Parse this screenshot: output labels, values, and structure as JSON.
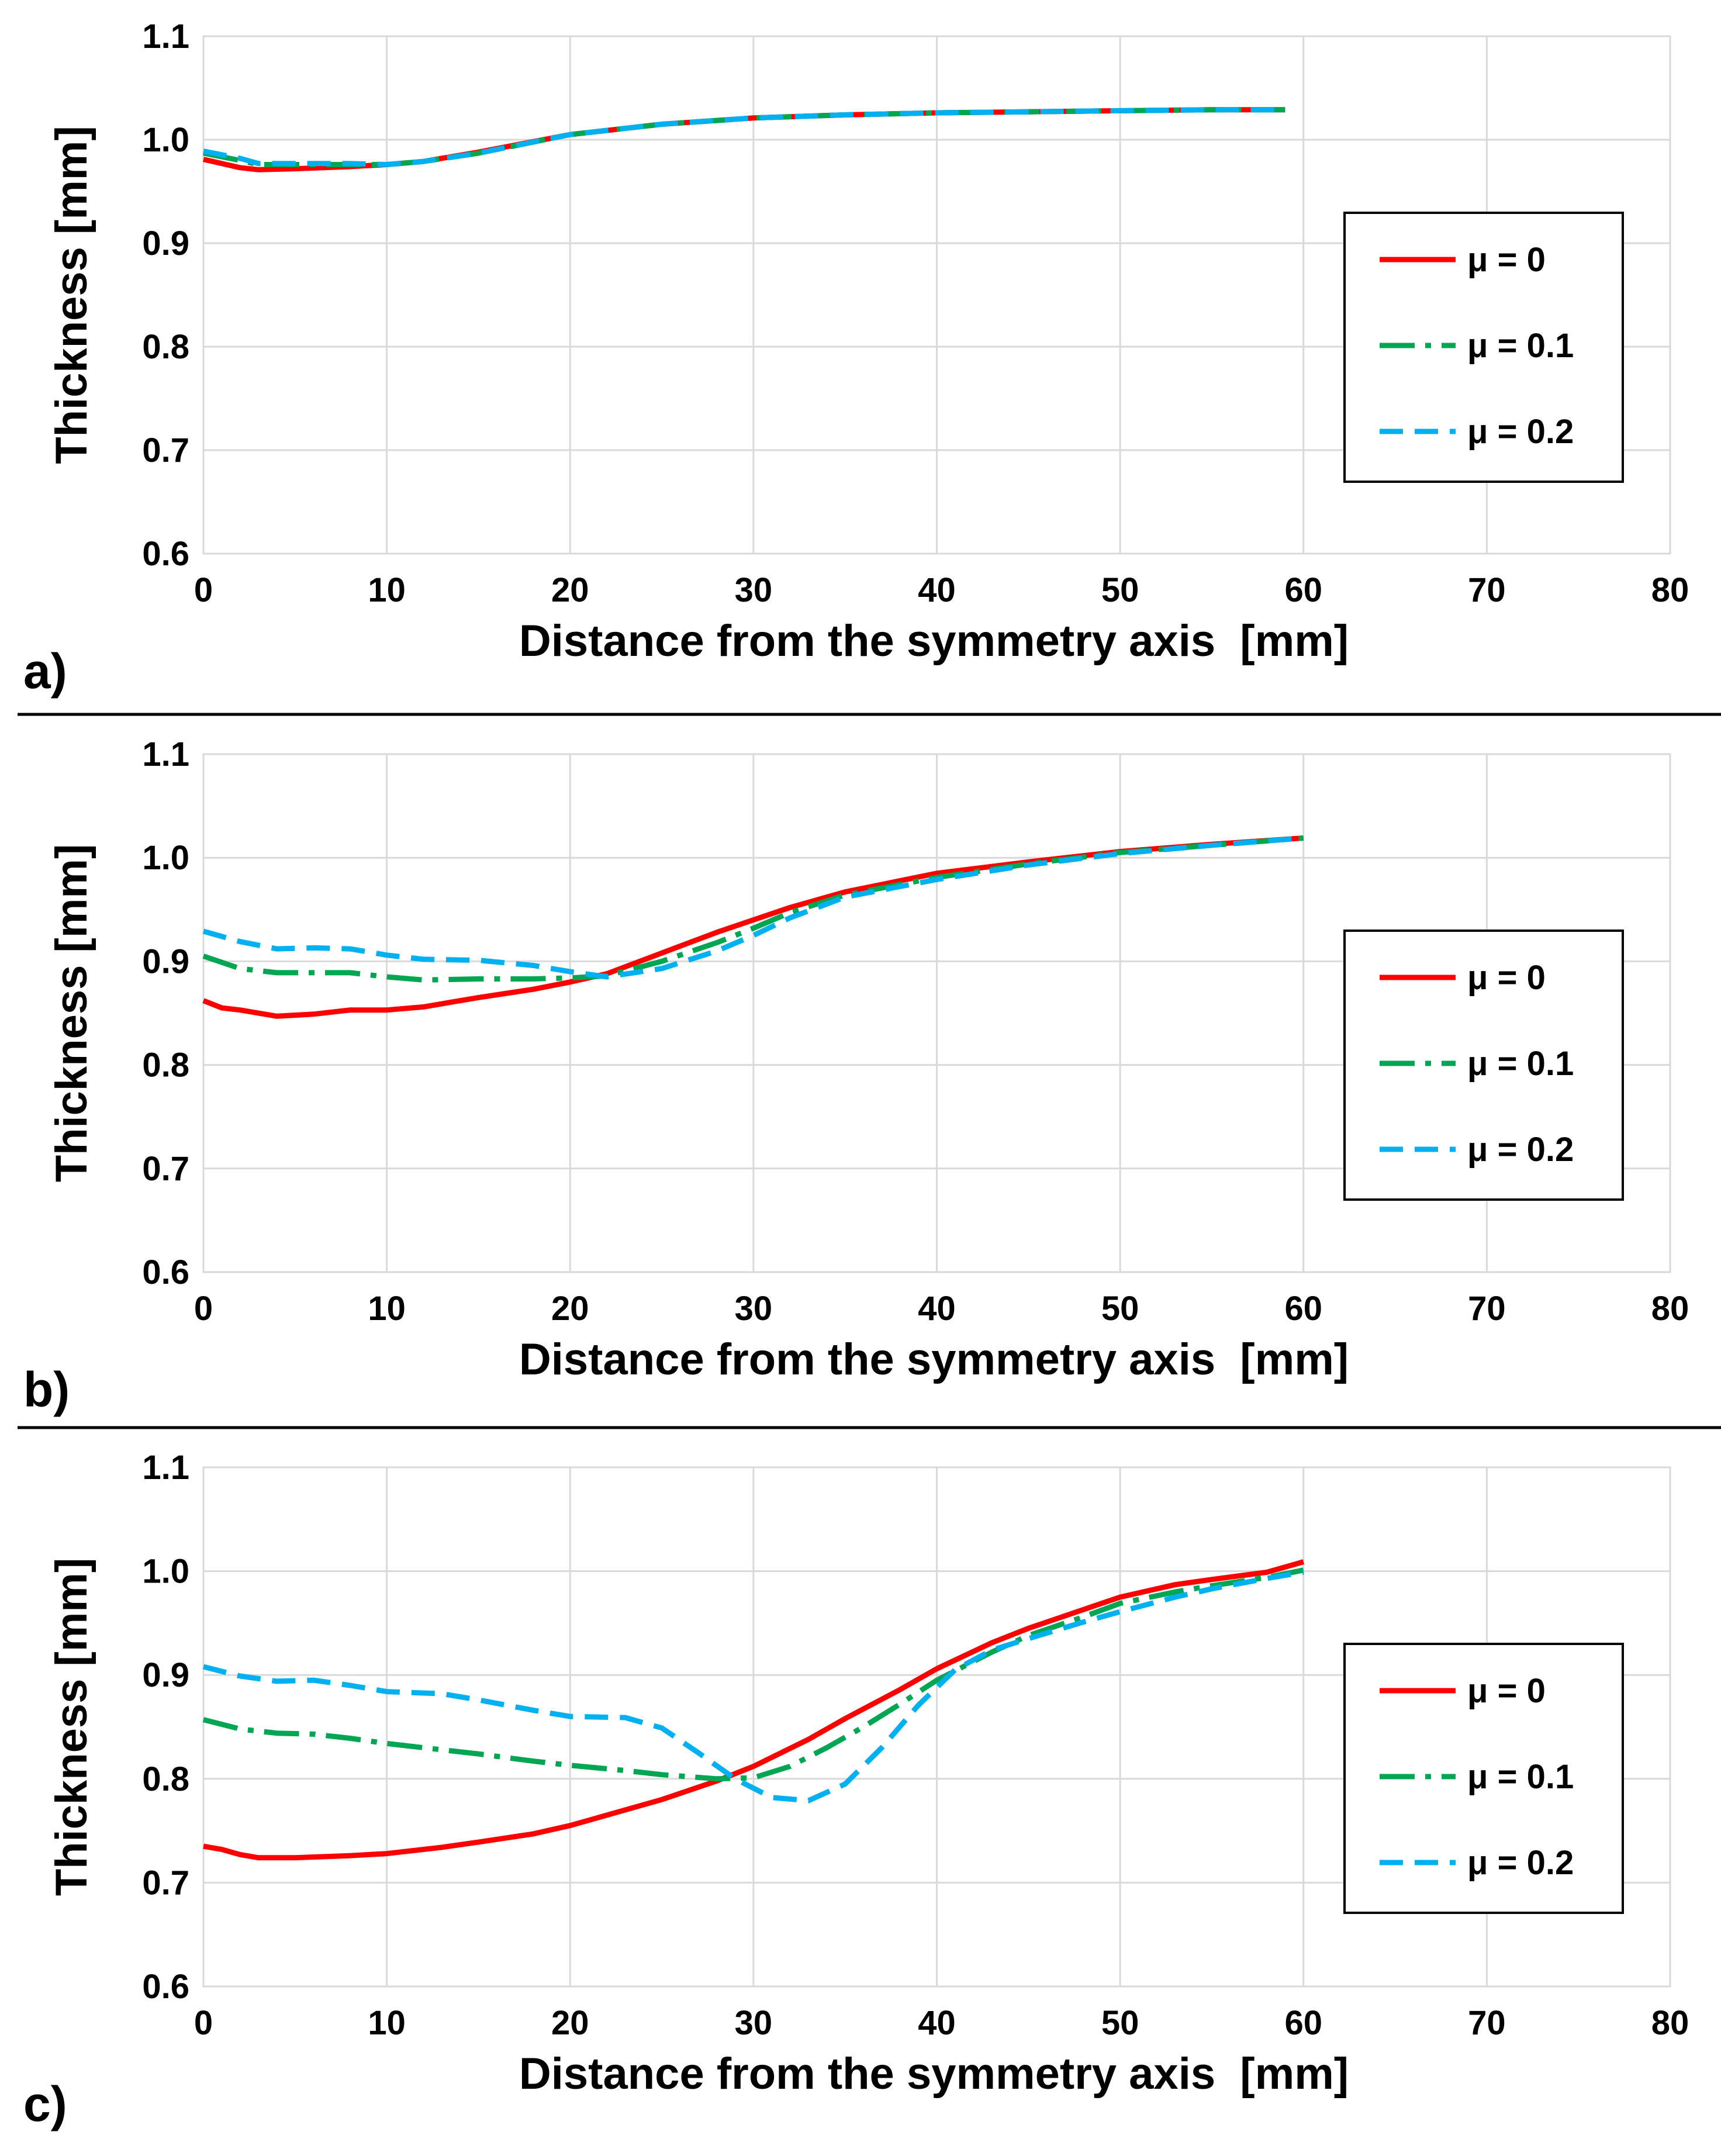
{
  "figure": {
    "panel_labels": [
      "a)",
      "b)",
      "c)"
    ]
  },
  "chart_data": [
    {
      "type": "line",
      "panel": "a)",
      "xlabel": "Distance from the symmetry axis  [mm]",
      "ylabel": "Thickness [mm]",
      "xlim": [
        0,
        80
      ],
      "ylim": [
        0.6,
        1.1
      ],
      "xticks": [
        "0",
        "10",
        "20",
        "30",
        "40",
        "50",
        "60",
        "70",
        "80"
      ],
      "yticks": [
        "0.6",
        "0.7",
        "0.8",
        "0.9",
        "1.0",
        "1.1"
      ],
      "grid": true,
      "legend_position": "right",
      "series": [
        {
          "name": "μ = 0",
          "color": "#ff0000",
          "style": "solid",
          "x": [
            0,
            2,
            3,
            5,
            8,
            10,
            12,
            15,
            20,
            25,
            30,
            35,
            40,
            45,
            50,
            55,
            59
          ],
          "y": [
            0.981,
            0.973,
            0.971,
            0.972,
            0.974,
            0.976,
            0.979,
            0.988,
            1.005,
            1.015,
            1.021,
            1.024,
            1.026,
            1.027,
            1.028,
            1.029,
            1.029
          ]
        },
        {
          "name": "μ = 0.1",
          "color": "#00a651",
          "style": "dashdot",
          "x": [
            0,
            2,
            3,
            5,
            8,
            10,
            12,
            15,
            20,
            25,
            30,
            35,
            40,
            45,
            50,
            55,
            59
          ],
          "y": [
            0.987,
            0.98,
            0.976,
            0.976,
            0.976,
            0.976,
            0.979,
            0.987,
            1.005,
            1.015,
            1.021,
            1.024,
            1.026,
            1.027,
            1.028,
            1.029,
            1.029
          ]
        },
        {
          "name": "μ = 0.2",
          "color": "#00b0f0",
          "style": "dashed",
          "x": [
            0,
            2,
            3,
            5,
            8,
            10,
            12,
            15,
            20,
            25,
            30,
            35,
            40,
            45,
            50,
            55,
            59
          ],
          "y": [
            0.989,
            0.982,
            0.977,
            0.977,
            0.977,
            0.976,
            0.979,
            0.987,
            1.005,
            1.015,
            1.021,
            1.024,
            1.026,
            1.027,
            1.028,
            1.029,
            1.029
          ]
        }
      ]
    },
    {
      "type": "line",
      "panel": "b)",
      "xlabel": "Distance from the symmetry axis  [mm]",
      "ylabel": "Thickness [mm]",
      "xlim": [
        0,
        80
      ],
      "ylim": [
        0.6,
        1.1
      ],
      "xticks": [
        "0",
        "10",
        "20",
        "30",
        "40",
        "50",
        "60",
        "70",
        "80"
      ],
      "yticks": [
        "0.6",
        "0.7",
        "0.8",
        "0.9",
        "1.0",
        "1.1"
      ],
      "grid": true,
      "legend_position": "right",
      "series": [
        {
          "name": "μ = 0",
          "color": "#ff0000",
          "style": "solid",
          "x": [
            0,
            1,
            2,
            4,
            6,
            8,
            10,
            12,
            15,
            18,
            20,
            22,
            25,
            28,
            30,
            32,
            35,
            40,
            45,
            50,
            55,
            60
          ],
          "y": [
            0.862,
            0.855,
            0.853,
            0.847,
            0.849,
            0.853,
            0.853,
            0.856,
            0.865,
            0.873,
            0.88,
            0.888,
            0.908,
            0.928,
            0.94,
            0.952,
            0.967,
            0.985,
            0.996,
            1.006,
            1.013,
            1.019
          ]
        },
        {
          "name": "μ = 0.1",
          "color": "#00a651",
          "style": "dashdot",
          "x": [
            0,
            2,
            4,
            6,
            8,
            10,
            12,
            15,
            18,
            20,
            22,
            25,
            28,
            30,
            32,
            35,
            40,
            45,
            50,
            55,
            60
          ],
          "y": [
            0.905,
            0.893,
            0.889,
            0.889,
            0.889,
            0.885,
            0.882,
            0.883,
            0.883,
            0.884,
            0.886,
            0.9,
            0.918,
            0.932,
            0.947,
            0.964,
            0.981,
            0.994,
            1.005,
            1.012,
            1.019
          ]
        },
        {
          "name": "μ = 0.2",
          "color": "#00b0f0",
          "style": "dashed",
          "x": [
            0,
            2,
            4,
            6,
            8,
            10,
            12,
            15,
            18,
            20,
            22,
            25,
            28,
            30,
            32,
            35,
            40,
            45,
            50,
            55,
            60
          ],
          "y": [
            0.929,
            0.919,
            0.912,
            0.913,
            0.912,
            0.906,
            0.902,
            0.901,
            0.896,
            0.89,
            0.885,
            0.893,
            0.91,
            0.925,
            0.942,
            0.962,
            0.979,
            0.993,
            1.004,
            1.012,
            1.019
          ]
        }
      ]
    },
    {
      "type": "line",
      "panel": "c)",
      "xlabel": "Distance from the symmetry axis  [mm]",
      "ylabel": "Thickness [mm]",
      "xlim": [
        0,
        80
      ],
      "ylim": [
        0.6,
        1.1
      ],
      "xticks": [
        "0",
        "10",
        "20",
        "30",
        "40",
        "50",
        "60",
        "70",
        "80"
      ],
      "yticks": [
        "0.6",
        "0.7",
        "0.8",
        "0.9",
        "1.0",
        "1.1"
      ],
      "grid": true,
      "legend_position": "right",
      "series": [
        {
          "name": "μ = 0",
          "color": "#ff0000",
          "style": "solid",
          "x": [
            0,
            1,
            2,
            3,
            5,
            8,
            10,
            13,
            15,
            18,
            20,
            23,
            25,
            28,
            30,
            33,
            35,
            38,
            40,
            43,
            45,
            48,
            50,
            53,
            55,
            58,
            60
          ],
          "y": [
            0.735,
            0.732,
            0.727,
            0.724,
            0.724,
            0.726,
            0.728,
            0.734,
            0.739,
            0.747,
            0.755,
            0.77,
            0.78,
            0.798,
            0.812,
            0.838,
            0.858,
            0.886,
            0.906,
            0.931,
            0.945,
            0.963,
            0.975,
            0.987,
            0.992,
            0.999,
            1.009
          ]
        },
        {
          "name": "μ = 0.1",
          "color": "#00a651",
          "style": "dashdot",
          "x": [
            0,
            2,
            4,
            6,
            8,
            10,
            13,
            15,
            18,
            20,
            23,
            25,
            28,
            30,
            32,
            34,
            36,
            38,
            40,
            43,
            45,
            48,
            50,
            53,
            55,
            58,
            60
          ],
          "y": [
            0.857,
            0.848,
            0.844,
            0.843,
            0.839,
            0.834,
            0.828,
            0.824,
            0.817,
            0.813,
            0.808,
            0.804,
            0.8,
            0.801,
            0.812,
            0.83,
            0.85,
            0.872,
            0.895,
            0.922,
            0.938,
            0.956,
            0.969,
            0.98,
            0.986,
            0.994,
            1.001
          ]
        },
        {
          "name": "μ = 0.2",
          "color": "#00b0f0",
          "style": "dashed",
          "x": [
            0,
            2,
            4,
            6,
            8,
            10,
            13,
            15,
            18,
            20,
            23,
            25,
            27,
            29,
            31,
            33,
            35,
            37,
            39,
            41,
            43,
            45,
            48,
            50,
            53,
            55,
            58,
            60
          ],
          "y": [
            0.908,
            0.899,
            0.894,
            0.895,
            0.89,
            0.884,
            0.882,
            0.876,
            0.866,
            0.86,
            0.859,
            0.849,
            0.825,
            0.8,
            0.782,
            0.779,
            0.795,
            0.83,
            0.871,
            0.905,
            0.924,
            0.935,
            0.951,
            0.961,
            0.975,
            0.983,
            0.993,
            0.999
          ]
        }
      ]
    }
  ]
}
